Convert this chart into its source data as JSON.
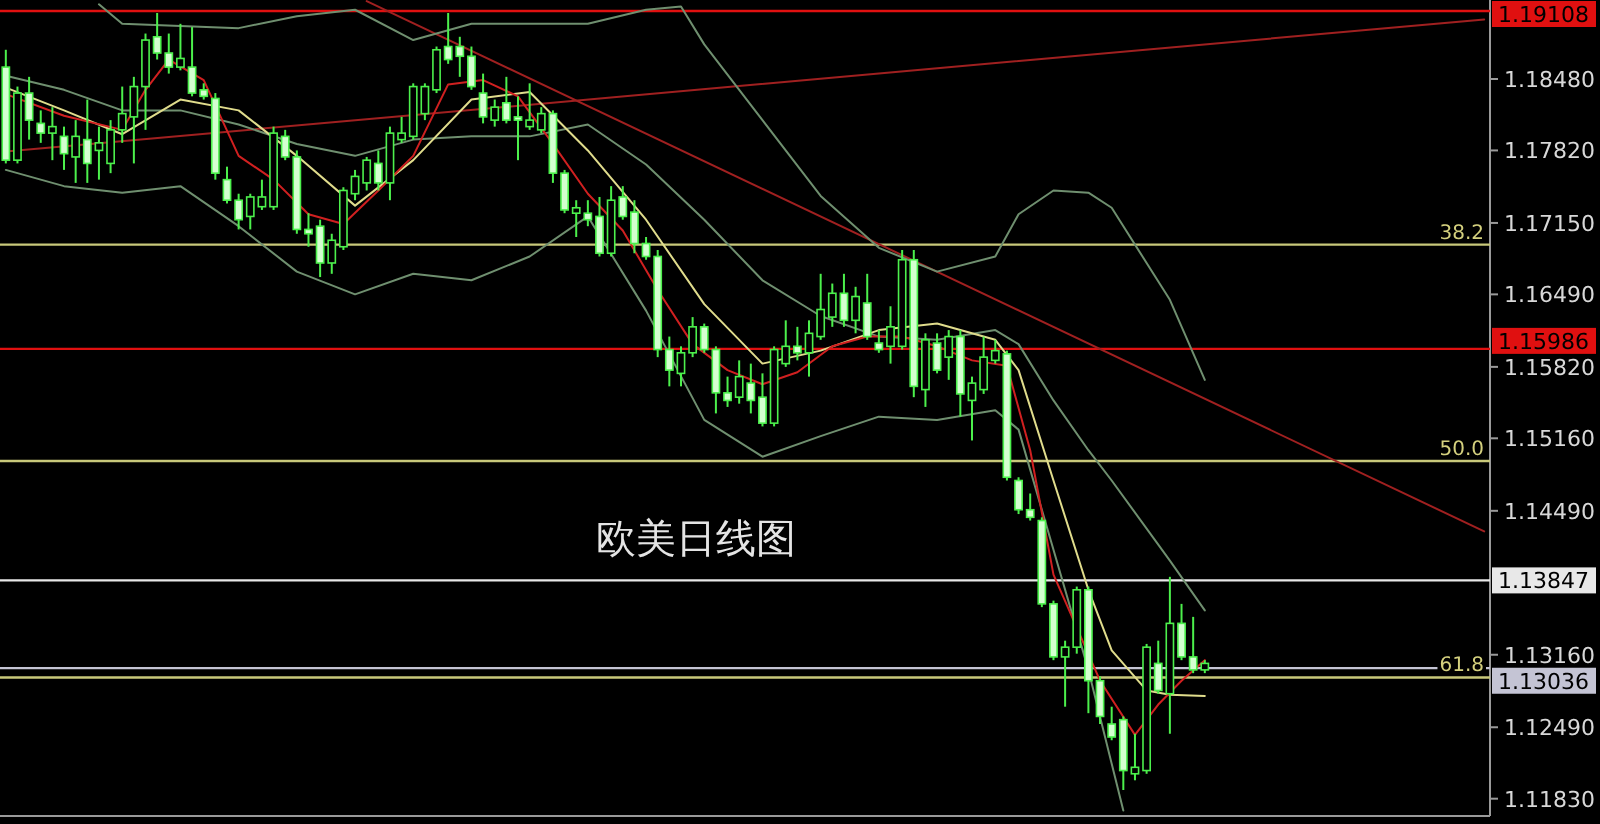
{
  "chart_data": {
    "type": "candlestick",
    "title": "欧美日线图",
    "tick_labels": "y",
    "ylim": [
      1.1167,
      1.1921
    ],
    "yticks": [
      {
        "value": 1.1848,
        "label": "1.18480"
      },
      {
        "value": 1.1782,
        "label": "1.17820"
      },
      {
        "value": 1.1715,
        "label": "1.17150"
      },
      {
        "value": 1.1649,
        "label": "1.16490"
      },
      {
        "value": 1.1582,
        "label": "1.15820"
      },
      {
        "value": 1.1516,
        "label": "1.15160"
      },
      {
        "value": 1.1449,
        "label": "1.14490"
      },
      {
        "value": 1.1316,
        "label": "1.13160"
      },
      {
        "value": 1.1249,
        "label": "1.12490"
      },
      {
        "value": 1.1183,
        "label": "1.11830"
      }
    ],
    "categories": [
      null,
      null,
      null,
      null,
      null,
      null,
      null,
      null,
      null,
      null,
      null,
      null,
      null,
      null,
      null,
      null,
      null,
      null,
      null,
      null,
      null,
      null,
      null,
      null,
      null,
      null,
      null,
      null,
      null,
      null,
      null,
      null,
      null,
      null,
      null,
      null,
      null,
      null,
      null,
      null,
      null,
      null,
      null,
      null,
      null,
      null,
      null,
      null,
      null,
      null,
      null,
      null,
      null,
      null,
      null,
      null,
      null,
      null,
      null,
      null,
      null,
      null,
      null,
      null,
      null,
      null,
      null,
      null,
      null,
      null,
      null,
      null,
      null,
      null,
      null,
      null,
      null,
      null,
      null,
      null,
      null,
      null,
      null,
      null,
      null,
      null,
      null,
      null,
      null,
      null,
      null,
      null,
      null,
      null,
      null,
      null,
      null,
      null,
      null,
      null,
      null,
      null,
      null,
      null,
      null,
      null,
      null,
      null,
      null,
      null,
      null,
      null,
      null,
      null,
      null,
      null,
      null,
      null,
      null,
      null,
      null,
      null,
      null,
      null,
      null,
      null,
      null,
      null
    ],
    "ohlc": [
      [
        1.1859,
        1.1875,
        1.177,
        1.1773
      ],
      [
        1.1773,
        1.1841,
        1.177,
        1.1835
      ],
      [
        1.1835,
        1.185,
        1.1792,
        1.181
      ],
      [
        1.1807,
        1.1819,
        1.1789,
        1.1798
      ],
      [
        1.1798,
        1.1822,
        1.1773,
        1.1804
      ],
      [
        1.1795,
        1.1804,
        1.1764,
        1.1779
      ],
      [
        1.1776,
        1.181,
        1.1752,
        1.1795
      ],
      [
        1.1792,
        1.1829,
        1.1752,
        1.177
      ],
      [
        1.1782,
        1.1804,
        1.1755,
        1.1789
      ],
      [
        1.177,
        1.181,
        1.1761,
        1.1801
      ],
      [
        1.1801,
        1.1841,
        1.1789,
        1.1816
      ],
      [
        1.1813,
        1.185,
        1.177,
        1.1841
      ],
      [
        1.1841,
        1.189,
        1.1801,
        1.1884
      ],
      [
        1.1887,
        1.1909,
        1.1866,
        1.1872
      ],
      [
        1.1872,
        1.189,
        1.1853,
        1.1859
      ],
      [
        1.1859,
        1.1899,
        1.1856,
        1.1867
      ],
      [
        1.1859,
        1.1896,
        1.1832,
        1.1835
      ],
      [
        1.1838,
        1.1844,
        1.1829,
        1.1832
      ],
      [
        1.183,
        1.1835,
        1.1755,
        1.1761
      ],
      [
        1.1755,
        1.1767,
        1.1733,
        1.1736
      ],
      [
        1.1736,
        1.1742,
        1.1709,
        1.1718
      ],
      [
        1.1721,
        1.1742,
        1.1709,
        1.1739
      ],
      [
        1.173,
        1.1755,
        1.1727,
        1.1739
      ],
      [
        1.173,
        1.1804,
        1.1727,
        1.1798
      ],
      [
        1.1795,
        1.1801,
        1.1773,
        1.1776
      ],
      [
        1.1776,
        1.1782,
        1.1705,
        1.1709
      ],
      [
        1.1709,
        1.1724,
        1.1693,
        1.1705
      ],
      [
        1.1712,
        1.1718,
        1.1665,
        1.1678
      ],
      [
        1.1678,
        1.1705,
        1.1668,
        1.1699
      ],
      [
        1.1693,
        1.1748,
        1.169,
        1.1745
      ],
      [
        1.1742,
        1.1764,
        1.1736,
        1.1758
      ],
      [
        1.1752,
        1.1776,
        1.1745,
        1.1773
      ],
      [
        1.177,
        1.1782,
        1.1745,
        1.1752
      ],
      [
        1.1752,
        1.1804,
        1.1736,
        1.1798
      ],
      [
        1.1792,
        1.1813,
        1.1789,
        1.1798
      ],
      [
        1.1795,
        1.1844,
        1.1792,
        1.1841
      ],
      [
        1.1816,
        1.1844,
        1.181,
        1.1841
      ],
      [
        1.1838,
        1.1878,
        1.1835,
        1.1875
      ],
      [
        1.1878,
        1.1909,
        1.1862,
        1.1866
      ],
      [
        1.1878,
        1.1887,
        1.185,
        1.1869
      ],
      [
        1.1869,
        1.1878,
        1.1838,
        1.1841
      ],
      [
        1.1835,
        1.1853,
        1.1807,
        1.1813
      ],
      [
        1.181,
        1.1829,
        1.1804,
        1.1822
      ],
      [
        1.1826,
        1.185,
        1.1807,
        1.181
      ],
      [
        1.1813,
        1.1832,
        1.1773,
        1.181
      ],
      [
        1.1804,
        1.1844,
        1.1801,
        1.181
      ],
      [
        1.1801,
        1.1822,
        1.1798,
        1.1816
      ],
      [
        1.1816,
        1.1819,
        1.1752,
        1.1761
      ],
      [
        1.1761,
        1.1764,
        1.1724,
        1.1727
      ],
      [
        1.1724,
        1.1736,
        1.1702,
        1.1729
      ],
      [
        1.1724,
        1.1736,
        1.1712,
        1.1718
      ],
      [
        1.1721,
        1.1739,
        1.1684,
        1.1687
      ],
      [
        1.1687,
        1.1749,
        1.1684,
        1.1736
      ],
      [
        1.1739,
        1.1749,
        1.1718,
        1.1721
      ],
      [
        1.1725,
        1.1736,
        1.1687,
        1.1696
      ],
      [
        1.1696,
        1.1702,
        1.1681,
        1.1684
      ],
      [
        1.1684,
        1.169,
        1.1591,
        1.1598
      ],
      [
        1.1598,
        1.161,
        1.1564,
        1.1579
      ],
      [
        1.1576,
        1.1601,
        1.1564,
        1.1595
      ],
      [
        1.1595,
        1.1628,
        1.1591,
        1.1619
      ],
      [
        1.1619,
        1.1622,
        1.1595,
        1.1598
      ],
      [
        1.1598,
        1.1601,
        1.1539,
        1.1558
      ],
      [
        1.1558,
        1.1573,
        1.1545,
        1.1551
      ],
      [
        1.1554,
        1.1588,
        1.1548,
        1.1573
      ],
      [
        1.1567,
        1.1585,
        1.1539,
        1.1551
      ],
      [
        1.1554,
        1.1576,
        1.1527,
        1.153
      ],
      [
        1.153,
        1.1601,
        1.1527,
        1.1598
      ],
      [
        1.1585,
        1.1625,
        1.1582,
        1.1601
      ],
      [
        1.1601,
        1.1619,
        1.1588,
        1.1595
      ],
      [
        1.1595,
        1.1625,
        1.1573,
        1.1613
      ],
      [
        1.161,
        1.1668,
        1.1607,
        1.1635
      ],
      [
        1.1628,
        1.1659,
        1.1619,
        1.165
      ],
      [
        1.165,
        1.1668,
        1.1619,
        1.1625
      ],
      [
        1.1625,
        1.1656,
        1.1613,
        1.1647
      ],
      [
        1.1641,
        1.1668,
        1.1607,
        1.161
      ],
      [
        1.1604,
        1.1616,
        1.1595,
        1.1598
      ],
      [
        1.1601,
        1.1638,
        1.1585,
        1.1619
      ],
      [
        1.1601,
        1.169,
        1.1598,
        1.1681
      ],
      [
        1.1681,
        1.169,
        1.1554,
        1.1564
      ],
      [
        1.1561,
        1.1613,
        1.1545,
        1.1607
      ],
      [
        1.1604,
        1.1613,
        1.1576,
        1.1579
      ],
      [
        1.1591,
        1.1616,
        1.157,
        1.161
      ],
      [
        1.161,
        1.1616,
        1.1536,
        1.1557
      ],
      [
        1.1551,
        1.1573,
        1.1514,
        1.1567
      ],
      [
        1.1561,
        1.161,
        1.1557,
        1.1591
      ],
      [
        1.1588,
        1.1607,
        1.1585,
        1.1597
      ],
      [
        1.1594,
        1.1597,
        1.1477,
        1.148
      ],
      [
        1.1477,
        1.148,
        1.1446,
        1.145
      ],
      [
        1.145,
        1.1465,
        1.144,
        1.1443
      ],
      [
        1.144,
        1.1443,
        1.136,
        1.1363
      ],
      [
        1.1363,
        1.1366,
        1.1311,
        1.1314
      ],
      [
        1.1314,
        1.1329,
        1.1268,
        1.1323
      ],
      [
        1.1323,
        1.1379,
        1.1317,
        1.1376
      ],
      [
        1.1376,
        1.1379,
        1.1262,
        1.1292
      ],
      [
        1.1292,
        1.1296,
        1.1252,
        1.1259
      ],
      [
        1.1252,
        1.1268,
        1.1237,
        1.124
      ],
      [
        1.1256,
        1.1259,
        1.1191,
        1.1209
      ],
      [
        1.1206,
        1.1243,
        1.12,
        1.1212
      ],
      [
        1.1209,
        1.1326,
        1.1206,
        1.1323
      ],
      [
        1.1308,
        1.1329,
        1.128,
        1.1283
      ],
      [
        1.128,
        1.1388,
        1.1243,
        1.1345
      ],
      [
        1.1345,
        1.1363,
        1.1311,
        1.1314
      ],
      [
        1.1314,
        1.1351,
        1.1299,
        1.1302
      ],
      [
        1.1302,
        1.1311,
        1.1299,
        1.1308
      ],
      null,
      null,
      null,
      null,
      null,
      null,
      null,
      null,
      null,
      null,
      null,
      null,
      null,
      null,
      null,
      null,
      null,
      null,
      null,
      null,
      null,
      null,
      null,
      null
    ],
    "series": [
      {
        "type": "line",
        "color": "#a02020",
        "values": [
          null,
          null,
          null,
          null,
          null,
          null,
          null,
          null,
          null,
          null,
          null,
          null,
          null,
          null,
          null,
          null,
          null,
          null,
          null,
          null,
          null,
          null,
          null,
          null,
          null,
          null,
          null,
          null,
          null,
          null,
          null,
          1.192,
          null,
          null,
          null,
          null,
          null,
          null,
          null,
          null,
          null,
          null,
          null,
          null,
          null,
          null,
          null,
          null,
          null,
          null,
          null,
          null,
          null,
          null,
          null,
          null,
          null,
          null,
          null,
          null,
          null,
          null,
          null,
          null,
          null,
          null,
          null,
          null,
          null,
          null,
          null,
          null,
          null,
          null,
          null,
          null,
          null,
          null,
          null,
          null,
          null,
          null,
          null,
          null,
          null,
          null,
          null,
          null,
          null,
          null,
          null,
          null,
          null,
          null,
          null,
          null,
          null,
          null,
          null,
          null,
          null,
          null,
          null,
          null,
          null,
          null,
          null,
          null,
          null,
          null,
          null,
          null,
          null,
          null,
          null,
          null,
          null,
          null,
          null,
          null,
          null,
          null,
          null,
          null,
          null,
          null,
          null,
          1.143
        ]
      },
      {
        "type": "line",
        "color": "#a02020",
        "values": [
          1.1781,
          null,
          null,
          null,
          null,
          null,
          null,
          null,
          null,
          null,
          null,
          null,
          null,
          null,
          null,
          null,
          null,
          null,
          null,
          null,
          null,
          null,
          null,
          null,
          null,
          null,
          null,
          null,
          null,
          null,
          null,
          null,
          null,
          null,
          null,
          null,
          null,
          null,
          null,
          null,
          null,
          null,
          null,
          null,
          null,
          null,
          null,
          null,
          null,
          null,
          null,
          null,
          null,
          null,
          null,
          null,
          null,
          null,
          null,
          null,
          null,
          null,
          null,
          null,
          null,
          null,
          null,
          null,
          null,
          null,
          null,
          null,
          null,
          null,
          null,
          null,
          null,
          null,
          null,
          null,
          null,
          null,
          null,
          null,
          null,
          null,
          null,
          null,
          null,
          null,
          null,
          null,
          null,
          null,
          null,
          null,
          null,
          null,
          null,
          null,
          null,
          null,
          null,
          null,
          null,
          null,
          null,
          null,
          null,
          null,
          null,
          null,
          null,
          null,
          null,
          null,
          null,
          null,
          null,
          null,
          null,
          null,
          null,
          null,
          null,
          null,
          null,
          1.1903
        ]
      },
      {
        "type": "line",
        "color": "#6f8f6f",
        "values": [
          null,
          null,
          null,
          null,
          null,
          null,
          null,
          null,
          1.1917,
          null,
          1.1899,
          null,
          null,
          null,
          null,
          1.1897,
          null,
          null,
          null,
          null,
          1.1895,
          null,
          null,
          null,
          null,
          1.1906,
          null,
          null,
          null,
          null,
          1.1912,
          null,
          null,
          null,
          null,
          1.1884,
          null,
          null,
          null,
          null,
          1.1899,
          null,
          null,
          null,
          null,
          1.1899,
          null,
          null,
          null,
          null,
          1.1899,
          null,
          null,
          null,
          null,
          1.1912,
          null,
          null,
          1.1915,
          null,
          1.188,
          null,
          null,
          null,
          null,
          1.181,
          null,
          null,
          null,
          null,
          1.174,
          null,
          null,
          null,
          null,
          1.1692,
          null,
          null,
          null,
          null,
          1.167,
          null,
          null,
          null,
          null,
          1.1684,
          null,
          1.1723,
          null,
          null,
          1.1745,
          null,
          null,
          1.1743,
          null,
          1.1729,
          null,
          null,
          null,
          null,
          1.1644,
          null,
          null,
          1.157,
          null,
          null,
          null,
          null,
          null,
          null,
          null,
          null,
          null,
          null,
          null,
          null,
          null,
          null,
          null,
          null,
          null,
          null,
          null,
          null,
          null,
          null,
          null,
          null
        ]
      },
      {
        "type": "line",
        "color": "#6f8f6f",
        "values": [
          1.1851,
          null,
          null,
          null,
          null,
          1.1838,
          null,
          null,
          null,
          null,
          1.1819,
          null,
          null,
          null,
          null,
          1.1819,
          null,
          null,
          null,
          null,
          1.1806,
          null,
          null,
          null,
          null,
          1.1788,
          null,
          null,
          null,
          null,
          1.1777,
          null,
          null,
          null,
          null,
          1.1792,
          null,
          null,
          null,
          null,
          1.1795,
          null,
          null,
          null,
          null,
          1.1795,
          null,
          null,
          null,
          null,
          1.1806,
          null,
          null,
          null,
          null,
          1.1769,
          null,
          null,
          null,
          null,
          1.1718,
          null,
          null,
          null,
          null,
          1.1662,
          null,
          null,
          null,
          null,
          1.1629,
          null,
          null,
          null,
          null,
          1.161,
          null,
          null,
          null,
          null,
          1.1607,
          null,
          null,
          null,
          null,
          1.1616,
          null,
          1.1603,
          null,
          null,
          1.1551,
          null,
          null,
          1.1505,
          null,
          1.1477,
          null,
          null,
          null,
          null,
          1.1403,
          null,
          null,
          1.1357,
          null,
          null,
          null,
          null,
          null,
          null,
          null,
          null,
          null,
          null,
          null,
          null,
          null,
          null,
          null,
          null,
          null,
          null,
          null,
          null,
          null,
          null,
          null,
          null
        ]
      },
      {
        "type": "line",
        "color": "#6f8f6f",
        "values": [
          1.1764,
          null,
          null,
          null,
          null,
          1.1749,
          null,
          null,
          null,
          null,
          1.1743,
          null,
          null,
          null,
          null,
          1.1749,
          null,
          null,
          null,
          null,
          1.1712,
          null,
          null,
          null,
          null,
          1.167,
          null,
          null,
          null,
          null,
          1.1649,
          null,
          null,
          null,
          null,
          1.1668,
          null,
          null,
          null,
          null,
          1.1662,
          null,
          null,
          null,
          null,
          1.1684,
          null,
          null,
          null,
          null,
          1.1721,
          null,
          null,
          null,
          null,
          1.1634,
          null,
          null,
          null,
          null,
          1.1533,
          null,
          null,
          null,
          null,
          1.1499,
          null,
          null,
          null,
          null,
          1.1518,
          null,
          null,
          null,
          null,
          1.1536,
          null,
          null,
          null,
          null,
          1.1533,
          null,
          null,
          null,
          null,
          1.1542,
          null,
          1.1524,
          null,
          null,
          1.1413,
          null,
          null,
          1.1302,
          null,
          null,
          1.1172,
          null,
          null,
          null,
          null,
          null,
          null,
          null,
          null,
          null,
          null,
          null,
          null,
          null,
          null,
          null,
          null,
          null,
          null,
          null,
          null,
          null,
          null,
          null,
          null,
          null,
          null,
          null,
          null,
          null,
          null,
          null
        ]
      },
      {
        "type": "line",
        "color": "#e0dc8c",
        "values": [
          1.184,
          null,
          null,
          null,
          null,
          1.1819,
          null,
          null,
          null,
          null,
          1.1797,
          null,
          null,
          null,
          null,
          1.1829,
          null,
          null,
          null,
          null,
          1.1819,
          null,
          null,
          null,
          null,
          1.1777,
          null,
          null,
          null,
          null,
          1.1731,
          null,
          null,
          null,
          null,
          1.1773,
          null,
          null,
          null,
          null,
          1.1829,
          null,
          null,
          null,
          null,
          1.1836,
          null,
          null,
          null,
          null,
          1.1782,
          null,
          null,
          null,
          null,
          1.1718,
          null,
          null,
          null,
          null,
          1.164,
          null,
          null,
          null,
          null,
          1.1585,
          null,
          null,
          null,
          null,
          1.1597,
          null,
          null,
          null,
          null,
          1.1616,
          null,
          null,
          null,
          null,
          1.1622,
          null,
          null,
          null,
          null,
          1.1607,
          null,
          1.1579,
          null,
          null,
          1.1477,
          null,
          null,
          1.1376,
          null,
          1.132,
          null,
          null,
          1.1283,
          null,
          1.1279,
          null,
          null,
          1.1278,
          null,
          null,
          null,
          null,
          null,
          null,
          null,
          null,
          null,
          null,
          null,
          null,
          null,
          null,
          null,
          null,
          null,
          null,
          null,
          null,
          null,
          null,
          null,
          null
        ]
      },
      {
        "type": "line",
        "color": "#d02020",
        "values": [
          1.1834,
          null,
          null,
          null,
          null,
          1.1814,
          null,
          null,
          null,
          null,
          1.1801,
          null,
          1.1838,
          null,
          1.1866,
          null,
          null,
          1.1847,
          null,
          null,
          1.1777,
          null,
          null,
          1.1755,
          null,
          null,
          1.1723,
          null,
          null,
          1.1714,
          null,
          null,
          1.1745,
          null,
          null,
          1.1777,
          null,
          null,
          1.1843,
          null,
          null,
          1.1847,
          null,
          null,
          1.1832,
          null,
          null,
          1.1788,
          null,
          null,
          1.1742,
          null,
          null,
          1.1708,
          null,
          null,
          1.1653,
          null,
          null,
          1.1603,
          null,
          null,
          1.1579,
          null,
          null,
          1.1566,
          null,
          null,
          1.1577,
          null,
          null,
          1.1601,
          null,
          null,
          1.161,
          null,
          null,
          1.161,
          null,
          null,
          1.1601,
          null,
          null,
          1.1588,
          null,
          null,
          1.1583,
          null,
          1.1505,
          null,
          1.139,
          null,
          null,
          null,
          1.1292,
          null,
          null,
          1.1242,
          null,
          1.127,
          null,
          1.1292,
          null,
          1.1311,
          null,
          null,
          null,
          null,
          null,
          null,
          null,
          null,
          null,
          null,
          null,
          null,
          null,
          null,
          null,
          null,
          null,
          null,
          null,
          null,
          null,
          null,
          null,
          null
        ]
      }
    ],
    "ref_lines": [
      {
        "axis": "y",
        "value": 1.19108,
        "label": "1.19108",
        "color": "#e01010"
      },
      {
        "axis": "y",
        "value": 1.1695,
        "color": "#c8c87a"
      },
      {
        "axis": "y",
        "value": 1.15986,
        "label": "1.15986",
        "color": "#e01010"
      },
      {
        "axis": "y",
        "value": 1.1495,
        "color": "#c8c87a"
      },
      {
        "axis": "y",
        "value": 1.13847,
        "label": "1.13847",
        "color": "#e8e8e8"
      },
      {
        "axis": "y",
        "value": 1.13036,
        "label": "1.13036",
        "color": "#c4c4d4"
      },
      {
        "axis": "y",
        "value": 1.1295,
        "color": "#c8c87a"
      }
    ],
    "annotations": [
      {
        "text": "38.2",
        "y": 1.1695
      },
      {
        "text": "50.0",
        "y": 1.1495
      },
      {
        "text": "61.8",
        "y": 1.1295
      }
    ]
  }
}
